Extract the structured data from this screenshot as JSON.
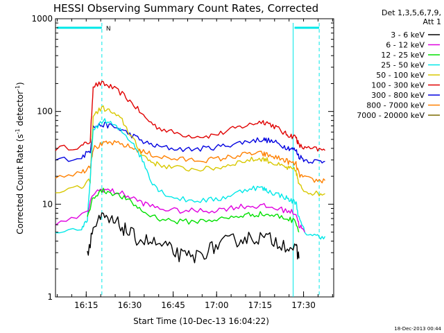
{
  "chart_data": {
    "type": "line",
    "title": "HESSI Observing Summary Count Rates, Corrected",
    "xlabel": "Start Time (10-Dec-13 16:04:22)",
    "ylabel_main": "Corrected Count Rate (s",
    "ylabel_sup1": "-1",
    "ylabel_mid": " detector",
    "ylabel_sup2": "-1",
    "ylabel_end": ")",
    "y_scale": "log",
    "ylim": [
      1,
      1000
    ],
    "xlim_minutes": [
      0,
      96
    ],
    "x_ticks": [
      {
        "label": "16:15",
        "min": 10.6
      },
      {
        "label": "16:30",
        "min": 25.6
      },
      {
        "label": "16:45",
        "min": 40.6
      },
      {
        "label": "17:00",
        "min": 55.6
      },
      {
        "label": "17:15",
        "min": 70.6
      },
      {
        "label": "17:30",
        "min": 85.6
      }
    ],
    "y_ticks": [
      {
        "label": "1",
        "value": 1
      },
      {
        "label": "10",
        "value": 10
      },
      {
        "label": "100",
        "value": 100
      },
      {
        "label": "1000",
        "value": 1000
      }
    ],
    "legend": {
      "header1": "Det 1,3,5,6,7,9,",
      "header2": "Att 1",
      "entries": [
        {
          "label": "3 - 6 keV",
          "color": "#000000"
        },
        {
          "label": "6 - 12 keV",
          "color": "#e000e0"
        },
        {
          "label": "12 - 25 keV",
          "color": "#00e000"
        },
        {
          "label": "25 - 50 keV",
          "color": "#00e8e8"
        },
        {
          "label": "50 - 100 keV",
          "color": "#d8c800"
        },
        {
          "label": "100 - 300 keV",
          "color": "#e00000"
        },
        {
          "label": "300 - 800 keV",
          "color": "#0000e0"
        },
        {
          "label": "800 - 7000 keV",
          "color": "#ff8000"
        },
        {
          "label": "7000 - 20000 keV",
          "color": "#7a6a00"
        }
      ]
    },
    "night_bar_label": "N",
    "night_intervals_min": [
      [
        0,
        16
      ],
      [
        82,
        91
      ]
    ],
    "cyan_vertical_lines_min": [
      16,
      82,
      91
    ],
    "series": [
      {
        "color": "#e00000",
        "x": [
          0,
          9,
          12,
          13,
          16,
          19,
          23,
          27,
          31,
          35,
          40,
          46,
          52,
          57,
          62,
          67,
          71,
          73,
          76,
          79,
          81,
          83,
          84,
          86,
          90,
          93
        ],
        "y": [
          40,
          42,
          48,
          190,
          200,
          185,
          155,
          118,
          85,
          68,
          60,
          55,
          54,
          58,
          66,
          72,
          78,
          76,
          68,
          58,
          55,
          53,
          43,
          40,
          39,
          38
        ]
      },
      {
        "color": "#0000e0",
        "x": [
          0,
          9,
          12,
          13,
          16,
          19,
          23,
          27,
          31,
          35,
          40,
          46,
          52,
          57,
          62,
          67,
          71,
          73,
          76,
          79,
          81,
          83,
          84,
          86,
          90,
          93
        ],
        "y": [
          30,
          32,
          38,
          68,
          72,
          70,
          63,
          54,
          46,
          42,
          40,
          39,
          40,
          42,
          45,
          48,
          50,
          49,
          46,
          42,
          40,
          38,
          33,
          30,
          29,
          29
        ]
      },
      {
        "color": "#d8c800",
        "x": [
          0,
          9,
          12,
          13,
          16,
          19,
          23,
          26,
          29,
          32,
          35,
          40,
          46,
          52,
          57,
          62,
          67,
          71,
          73,
          76,
          79,
          81,
          83,
          84,
          86,
          90,
          93
        ],
        "y": [
          14,
          15,
          18,
          90,
          110,
          100,
          80,
          55,
          38,
          30,
          27,
          25,
          24,
          24,
          25,
          28,
          30,
          31,
          30,
          27,
          25,
          24,
          23,
          16,
          14,
          13,
          13
        ]
      },
      {
        "color": "#ff8000",
        "x": [
          0,
          9,
          12,
          13,
          16,
          19,
          23,
          27,
          31,
          35,
          40,
          46,
          52,
          57,
          62,
          67,
          71,
          73,
          76,
          79,
          81,
          83,
          84,
          86,
          90,
          93
        ],
        "y": [
          20,
          22,
          26,
          40,
          44,
          46,
          44,
          40,
          36,
          33,
          31,
          30,
          30,
          31,
          33,
          35,
          35,
          34,
          32,
          30,
          28,
          27,
          21,
          19,
          18,
          18
        ]
      },
      {
        "color": "#00e8e8",
        "x": [
          0,
          9,
          11,
          13,
          16,
          19,
          23,
          27,
          30,
          33,
          36,
          40,
          46,
          52,
          57,
          62,
          67,
          71,
          73,
          76,
          79,
          81,
          83,
          84,
          86,
          90,
          93
        ],
        "y": [
          5,
          5.5,
          6.5,
          60,
          80,
          75,
          60,
          45,
          30,
          18,
          14,
          12,
          11,
          11,
          11.5,
          13,
          15,
          15,
          14,
          13,
          12,
          11,
          10.5,
          7,
          5,
          4.5,
          4.5
        ]
      },
      {
        "color": "#e000e0",
        "x": [
          0,
          11,
          13,
          16,
          19,
          23,
          27,
          31,
          36,
          42,
          48,
          54,
          59,
          64,
          68,
          72,
          76,
          80,
          83,
          84,
          86
        ],
        "y": [
          6,
          8,
          13,
          14.5,
          14,
          13,
          11.5,
          10,
          9,
          8.5,
          8.5,
          8.5,
          9,
          9.5,
          9.5,
          9.5,
          9,
          8.5,
          8,
          6,
          5
        ]
      },
      {
        "color": "#00e000",
        "x": [
          11,
          13,
          16,
          19,
          23,
          27,
          31,
          36,
          42,
          48,
          54,
          59,
          64,
          68,
          72,
          76,
          80,
          83,
          84
        ],
        "y": [
          7,
          12,
          14,
          13.5,
          12,
          10,
          8,
          7,
          6.5,
          6.5,
          6.8,
          7,
          7.5,
          7.8,
          7.8,
          7.5,
          7,
          6.5,
          5
        ]
      },
      {
        "color": "#000000",
        "x": [
          11,
          13,
          16,
          19,
          22,
          25,
          28,
          32,
          36,
          40,
          44,
          48,
          52,
          56,
          60,
          64,
          68,
          72,
          76,
          80,
          83,
          84
        ],
        "y": [
          3,
          5.5,
          7,
          6.5,
          6,
          5,
          4.3,
          4,
          3.6,
          3.2,
          2.7,
          2.7,
          3.1,
          3.6,
          4,
          4.2,
          4.4,
          4.3,
          4,
          3.6,
          3.2,
          2.6
        ]
      }
    ]
  },
  "footer": {
    "timestamp": "18-Dec-2013 00:44"
  }
}
